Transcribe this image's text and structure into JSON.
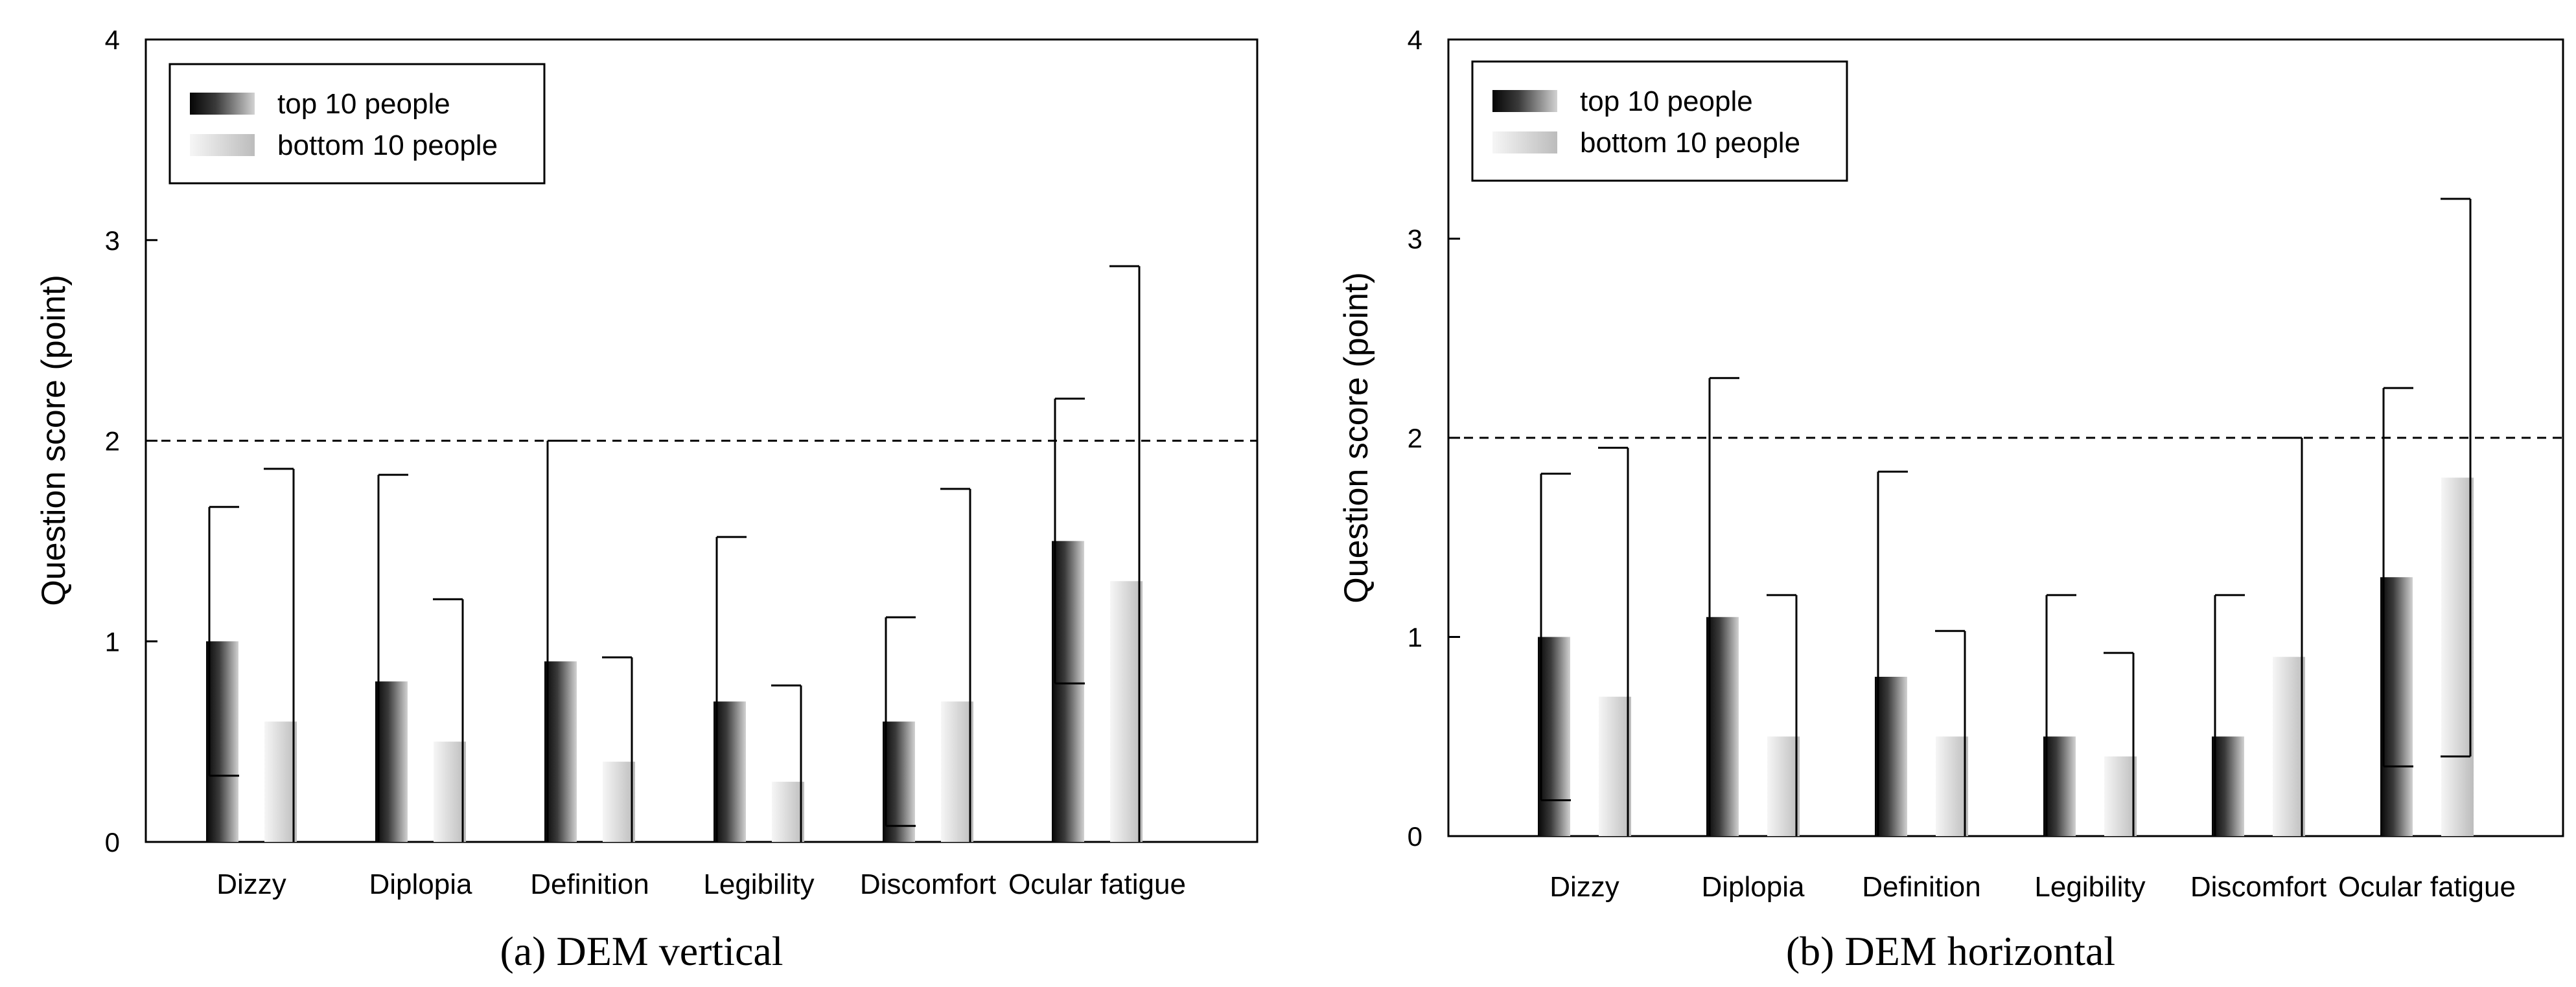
{
  "chart_data": [
    {
      "type": "bar",
      "title": "(a) DEM vertical",
      "xlabel": "",
      "ylabel": "Question score (point)",
      "ylim": [
        0,
        4
      ],
      "yticks": [
        "0",
        "1",
        "2",
        "3",
        "4"
      ],
      "reference_line": 2,
      "legend_position": "top-left",
      "categories": [
        "Dizzy",
        "Diplopia",
        "Definition",
        "Legibility",
        "Discomfort",
        "Ocular fatigue"
      ],
      "series": [
        {
          "name": "top 10 people",
          "values": [
            1.0,
            0.8,
            0.9,
            0.7,
            0.6,
            1.5
          ],
          "error_upper": [
            1.67,
            1.83,
            2.0,
            1.52,
            1.12,
            2.21
          ],
          "error_lower": [
            0.33,
            0.0,
            0.0,
            0.0,
            0.08,
            0.79
          ]
        },
        {
          "name": "bottom 10 people",
          "values": [
            0.6,
            0.5,
            0.4,
            0.3,
            0.7,
            1.3
          ],
          "error_upper": [
            1.86,
            1.21,
            0.92,
            0.78,
            1.76,
            2.87
          ],
          "error_lower": [
            0.0,
            0.0,
            0.0,
            0.0,
            0.0,
            0.0
          ]
        }
      ]
    },
    {
      "type": "bar",
      "title": "(b) DEM horizontal",
      "xlabel": "",
      "ylabel": "Question score (point)",
      "ylim": [
        0,
        4
      ],
      "yticks": [
        "0",
        "1",
        "2",
        "3",
        "4"
      ],
      "reference_line": 2,
      "legend_position": "top-left",
      "categories": [
        "Dizzy",
        "Diplopia",
        "Definition",
        "Legibility",
        "Discomfort",
        "Ocular fatigue"
      ],
      "series": [
        {
          "name": "top 10 people",
          "values": [
            1.0,
            1.1,
            0.8,
            0.5,
            0.5,
            1.3
          ],
          "error_upper": [
            1.82,
            2.3,
            1.83,
            1.21,
            1.21,
            2.25
          ],
          "error_lower": [
            0.18,
            0.0,
            0.0,
            0.0,
            0.0,
            0.35
          ]
        },
        {
          "name": "bottom 10 people",
          "values": [
            0.7,
            0.5,
            0.5,
            0.4,
            0.9,
            1.8
          ],
          "error_upper": [
            1.95,
            1.21,
            1.03,
            0.92,
            2.0,
            3.2
          ],
          "error_lower": [
            0.0,
            0.0,
            0.0,
            0.0,
            0.0,
            0.4
          ]
        }
      ]
    }
  ]
}
